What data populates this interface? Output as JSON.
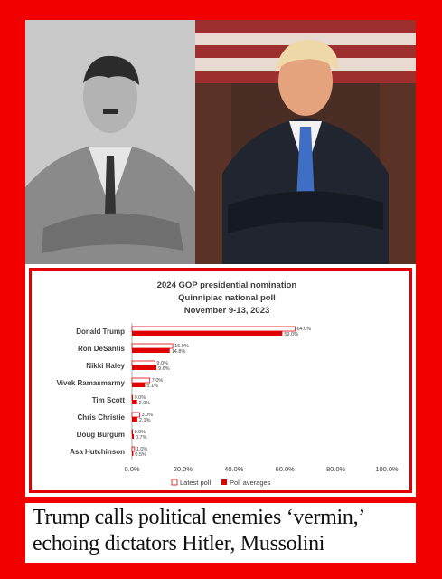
{
  "chart_data": {
    "type": "bar",
    "orientation": "horizontal",
    "title": "2024 GOP presidential nomination",
    "subtitle": "Quinnipiac national poll",
    "date": "November 9-13, 2023",
    "categories": [
      "Donald Trump",
      "Ron DeSantis",
      "Nikki Haley",
      "Vivek Ramasmarmy",
      "Tim Scott",
      "Chris Christie",
      "Doug Burgum",
      "Asa Hutchinson"
    ],
    "series": [
      {
        "name": "Latest poll",
        "values": [
          64.0,
          16.0,
          9.0,
          7.0,
          0.0,
          3.0,
          0.0,
          1.0
        ],
        "labels": [
          "64.0%",
          "16.0%",
          "9.0%",
          "7.0%",
          "0.0%",
          "3.0%",
          "0.0%",
          "1.0%"
        ],
        "color": "#ffffff",
        "border": "#e00000"
      },
      {
        "name": "Poll averages",
        "values": [
          59.0,
          14.8,
          9.6,
          5.1,
          2.0,
          2.1,
          0.7,
          0.5
        ],
        "labels": [
          "59.0%",
          "14.8%",
          "9.6%",
          "5.1%",
          "2.0%",
          "2.1%",
          "0.7%",
          "0.5%"
        ],
        "color": "#e00000"
      }
    ],
    "xlim": [
      0,
      100
    ],
    "xticks": [
      0,
      20,
      40,
      60,
      80,
      100
    ],
    "xtick_labels": [
      "0.0%",
      "20.0%",
      "40.0%",
      "60.0%",
      "80.0%",
      "100.0%"
    ],
    "grid": false,
    "legend": "bottom"
  },
  "caption": {
    "line1": "Trump calls political enemies ‘vermin,’",
    "line2": "echoing dictators Hitler, Mussolini"
  },
  "colors": {
    "background": "#f20000",
    "accent": "#e00000"
  }
}
